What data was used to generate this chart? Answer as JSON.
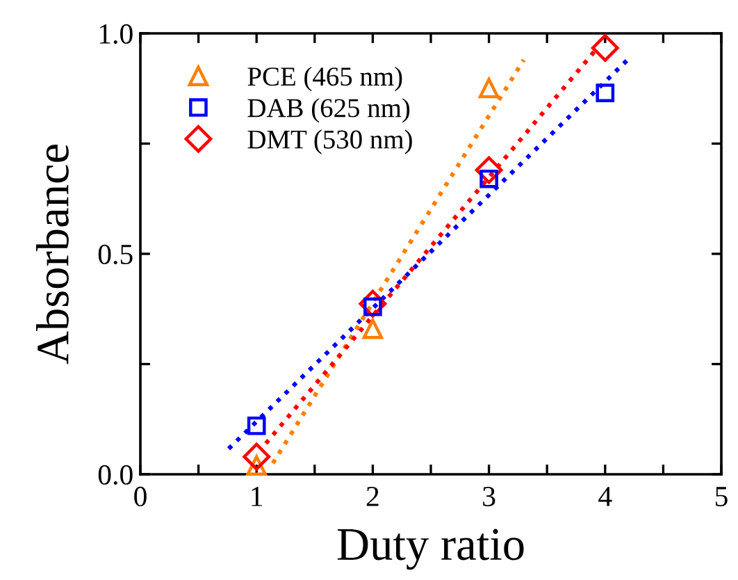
{
  "chart_data": {
    "type": "scatter",
    "xlabel": "Duty ratio",
    "ylabel": "Absorbance",
    "xlim": [
      0,
      5
    ],
    "ylim": [
      0,
      1.0
    ],
    "xticks": [
      0,
      {
        "value": 0.5,
        "label": null
      },
      1,
      {
        "value": 1.5,
        "label": null
      },
      2,
      {
        "value": 2.5,
        "label": null
      },
      3,
      {
        "value": 3.5,
        "label": null
      },
      4,
      {
        "value": 4.5,
        "label": null
      },
      5
    ],
    "yticks": [
      {
        "value": 0,
        "label": "0.0"
      },
      {
        "value": 0.25,
        "label": null
      },
      0.5,
      {
        "value": 0.75,
        "label": null
      },
      {
        "value": 1.0,
        "label": "1.0"
      }
    ],
    "grid": false,
    "legend": "top left",
    "series": [
      {
        "name": "PCE (465 nm)",
        "color": "#ff7f00",
        "marker": "triangle",
        "x": [
          1,
          2,
          3
        ],
        "values": [
          0.02,
          0.33,
          0.876
        ]
      },
      {
        "name": "DAB (625 nm)",
        "color": "#0000ff",
        "marker": "square",
        "x": [
          1,
          2,
          3,
          4
        ],
        "values": [
          0.11,
          0.38,
          0.67,
          0.865
        ]
      },
      {
        "name": "DMT (530 nm)",
        "color": "#ff0000",
        "marker": "diamond",
        "x": [
          1,
          2,
          3,
          4
        ],
        "values": [
          0.04,
          0.387,
          0.69,
          0.967
        ]
      },
      {
        "type": "line",
        "line_style": "dotted",
        "color": "#ff7f00",
        "x": [
          1.14,
          3.3
        ],
        "values": [
          0.025,
          0.94
        ]
      },
      {
        "type": "line",
        "line_style": "dotted",
        "color": "#0000ff",
        "x": [
          0.76,
          4.22
        ],
        "values": [
          0.058,
          0.947
        ]
      },
      {
        "type": "line",
        "line_style": "dotted",
        "color": "#ff0000",
        "x": [
          1.08,
          3.92
        ],
        "values": [
          0.07,
          0.963
        ]
      }
    ]
  }
}
